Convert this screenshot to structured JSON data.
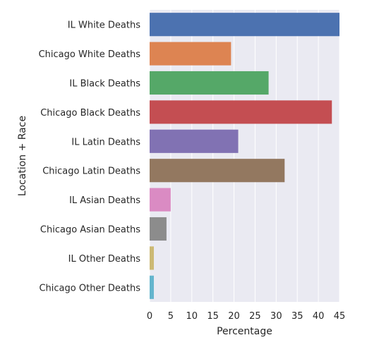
{
  "chart_data": {
    "type": "bar",
    "orientation": "horizontal",
    "title": "",
    "xlabel": "Percentage",
    "ylabel": "Location + Race",
    "xlim": [
      0,
      45
    ],
    "xticks": [
      "0",
      "5",
      "10",
      "15",
      "20",
      "25",
      "30",
      "35",
      "40",
      "45"
    ],
    "grid": true,
    "legend": "none",
    "background": "#eaeaf2",
    "categories": [
      "IL White Deaths",
      "Chicago White Deaths",
      "IL Black Deaths",
      "Chicago Black Deaths",
      "IL Latin Deaths",
      "Chicago Latin Deaths",
      "IL Asian Deaths",
      "Chicago Asian Deaths",
      "IL Other Deaths",
      "Chicago Other Deaths"
    ],
    "values": [
      45.0,
      19.3,
      28.2,
      43.2,
      21.0,
      32.0,
      5.0,
      4.0,
      1.0,
      1.0
    ],
    "colors": [
      "#4c72b0",
      "#dd8452",
      "#55a868",
      "#c44e52",
      "#8172b3",
      "#937860",
      "#da8bc3",
      "#8c8c8c",
      "#ccb974",
      "#64b5cd"
    ]
  }
}
